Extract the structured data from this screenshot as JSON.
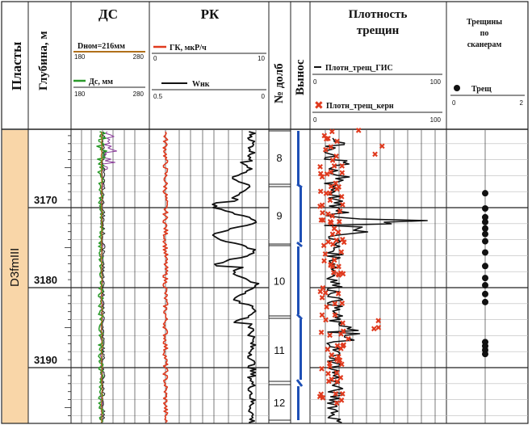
{
  "headers": {
    "plasty": "Пласты",
    "glubina": "Глубина, м",
    "ds": "ДС",
    "rk": "РК",
    "dolota": "№ долб",
    "vynos": "Вынос",
    "plotnost": "Плотность трещин",
    "treshchiny": "Трещины по сканерам"
  },
  "legends": {
    "dnom": "Dном=216мм",
    "ds_mm": "Дс, мм",
    "gk": "ГК, мкР/ч",
    "wnk": "Wнк",
    "pl_gis": "Плотн_трещ_ГИС",
    "pl_kern": "Плотн_трещ_керн",
    "tresh": "Трещ"
  },
  "scales": {
    "dnom": [
      "180",
      "280"
    ],
    "ds_mm": [
      "180",
      "280"
    ],
    "gk": [
      "0",
      "10"
    ],
    "wnk": [
      "0.5",
      "0"
    ],
    "pl_gis": [
      "0",
      "100"
    ],
    "pl_kern": [
      "0",
      "100"
    ],
    "tresh": [
      "0",
      "2"
    ]
  },
  "formation": "D3fmIII",
  "depth_labels": [
    "3170",
    "3180",
    "3190"
  ],
  "bits": [
    "8",
    "9",
    "10",
    "11",
    "12"
  ],
  "colors": {
    "formation_fill": "#f9d6a8",
    "gk": "#e03a1e",
    "kern": "#e03a1e",
    "core": "#1e4fb5",
    "green": "#2a9a2a",
    "purple": "#8a3a9a",
    "brown": "#b0701a"
  },
  "fractures_scanner_depth": [
    3168.2,
    3170.1,
    3171.2,
    3171.8,
    3172.6,
    3173.3,
    3174.2,
    3175.6,
    3177.3,
    3178.8,
    3179.7,
    3180.8,
    3181.8,
    3186.8,
    3187.3,
    3187.8,
    3188.3
  ]
}
